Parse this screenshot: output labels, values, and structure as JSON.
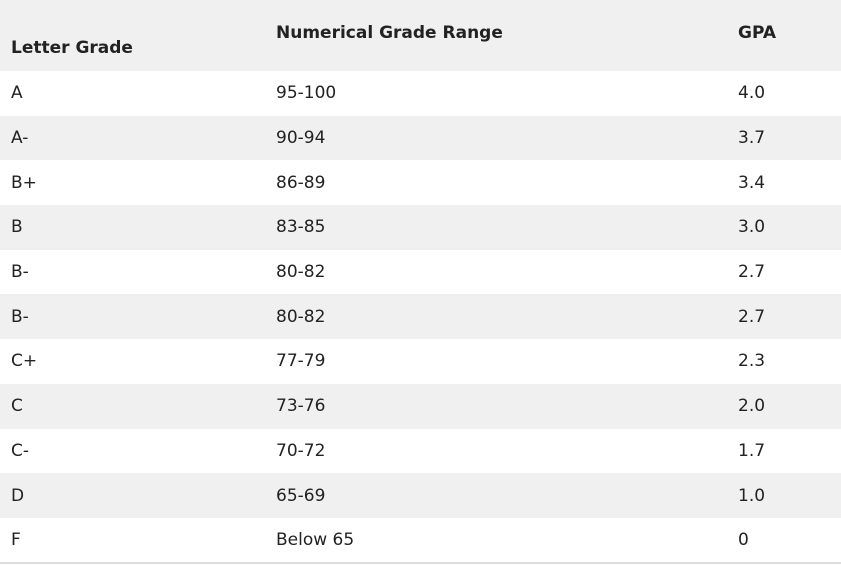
{
  "table": {
    "headers": {
      "letter": "Letter Grade",
      "range": "Numerical Grade Range",
      "gpa": "GPA"
    },
    "rows": [
      {
        "letter": "A",
        "range": "95-100",
        "gpa": "4.0"
      },
      {
        "letter": "A-",
        "range": "90-94",
        "gpa": "3.7"
      },
      {
        "letter": "B+",
        "range": "86-89",
        "gpa": "3.4"
      },
      {
        "letter": "B",
        "range": "83-85",
        "gpa": "3.0"
      },
      {
        "letter": "B-",
        "range": "80-82",
        "gpa": "2.7"
      },
      {
        "letter": "B-",
        "range": "80-82",
        "gpa": "2.7"
      },
      {
        "letter": "C+",
        "range": "77-79",
        "gpa": "2.3"
      },
      {
        "letter": "C",
        "range": "73-76",
        "gpa": "2.0"
      },
      {
        "letter": "C-",
        "range": "70-72",
        "gpa": "1.7"
      },
      {
        "letter": "D",
        "range": "65-69",
        "gpa": "1.0"
      },
      {
        "letter": "F",
        "range": "Below 65",
        "gpa": "0"
      }
    ]
  },
  "colors": {
    "header_bg": "#f0f0f0",
    "stripe_bg": "#f0f0f0",
    "row_bg": "#ffffff",
    "text": "#222222"
  }
}
